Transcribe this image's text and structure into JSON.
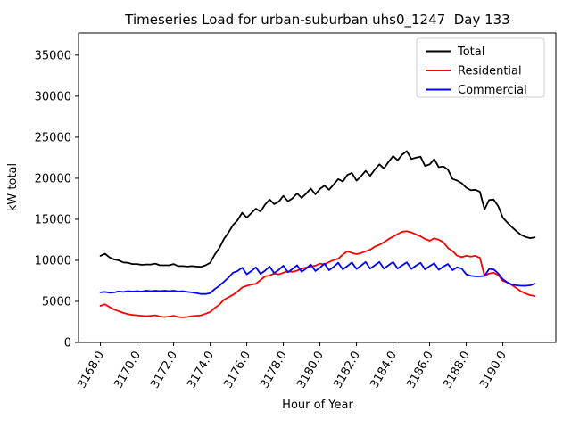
{
  "window": {
    "title": "Timeseries Load for urban-suburban uhs0_1247  Day 133"
  },
  "colors": {
    "total": "#000000",
    "residential": "#ff0000",
    "commercial": "#0000ff",
    "legend_border": "#cccccc",
    "background": "#ffffff"
  },
  "chart_data": {
    "type": "line",
    "title": "Timeseries Load for urban-suburban uhs0_1247  Day 133",
    "xlabel": "Hour of Year",
    "ylabel": "kW total",
    "xlim": [
      3166.8,
      3192.9
    ],
    "ylim": [
      0,
      37700
    ],
    "grid": false,
    "legend_position": "upper right",
    "x_ticks": [
      "3168.0",
      "3170.0",
      "3172.0",
      "3174.0",
      "3176.0",
      "3178.0",
      "3180.0",
      "3182.0",
      "3184.0",
      "3186.0",
      "3188.0",
      "3190.0"
    ],
    "y_ticks": [
      "0",
      "5000",
      "10000",
      "15000",
      "20000",
      "25000",
      "30000",
      "35000"
    ],
    "x": [
      3168.0,
      3168.25,
      3168.5,
      3168.75,
      3169.0,
      3169.25,
      3169.5,
      3169.75,
      3170.0,
      3170.25,
      3170.5,
      3170.75,
      3171.0,
      3171.25,
      3171.5,
      3171.75,
      3172.0,
      3172.25,
      3172.5,
      3172.75,
      3173.0,
      3173.25,
      3173.5,
      3173.75,
      3174.0,
      3174.25,
      3174.5,
      3174.75,
      3175.0,
      3175.25,
      3175.5,
      3175.75,
      3176.0,
      3176.25,
      3176.5,
      3176.75,
      3177.0,
      3177.25,
      3177.5,
      3177.75,
      3178.0,
      3178.25,
      3178.5,
      3178.75,
      3179.0,
      3179.25,
      3179.5,
      3179.75,
      3180.0,
      3180.25,
      3180.5,
      3180.75,
      3181.0,
      3181.25,
      3181.5,
      3181.75,
      3182.0,
      3182.25,
      3182.5,
      3182.75,
      3183.0,
      3183.25,
      3183.5,
      3183.75,
      3184.0,
      3184.25,
      3184.5,
      3184.75,
      3185.0,
      3185.25,
      3185.5,
      3185.75,
      3186.0,
      3186.25,
      3186.5,
      3186.75,
      3187.0,
      3187.25,
      3187.5,
      3187.75,
      3188.0,
      3188.25,
      3188.5,
      3188.75,
      3189.0,
      3189.25,
      3189.5,
      3189.75,
      3190.0,
      3190.25,
      3190.5,
      3190.75,
      3191.0,
      3191.25,
      3191.5,
      3191.75
    ],
    "series": [
      {
        "name": "Total",
        "color": "#000000",
        "values": [
          10550,
          10800,
          10350,
          10100,
          10000,
          9750,
          9700,
          9550,
          9550,
          9450,
          9500,
          9500,
          9600,
          9400,
          9400,
          9400,
          9550,
          9300,
          9300,
          9250,
          9300,
          9250,
          9200,
          9400,
          9700,
          10700,
          11500,
          12600,
          13400,
          14300,
          14900,
          15800,
          15200,
          15750,
          16300,
          15950,
          16800,
          17400,
          16850,
          17150,
          17850,
          17200,
          17550,
          18150,
          17600,
          18130,
          18750,
          18050,
          18700,
          19100,
          18600,
          19230,
          19900,
          19600,
          20400,
          20650,
          19710,
          20250,
          20900,
          20300,
          21070,
          21700,
          21200,
          21980,
          22700,
          22200,
          22880,
          23300,
          22350,
          22500,
          22630,
          21500,
          21690,
          22330,
          21350,
          21450,
          21050,
          19920,
          19720,
          19400,
          18850,
          18550,
          18600,
          18350,
          16200,
          17350,
          17400,
          16600,
          15200,
          14600,
          14050,
          13550,
          13100,
          12850,
          12700,
          12800
        ]
      },
      {
        "name": "Residential",
        "color": "#ff0000",
        "values": [
          4450,
          4650,
          4300,
          4000,
          3800,
          3600,
          3450,
          3350,
          3300,
          3250,
          3200,
          3250,
          3300,
          3150,
          3100,
          3150,
          3250,
          3100,
          3050,
          3100,
          3200,
          3250,
          3300,
          3500,
          3700,
          4200,
          4600,
          5200,
          5500,
          5800,
          6200,
          6700,
          6900,
          7050,
          7150,
          7600,
          8050,
          8150,
          8400,
          8300,
          8500,
          8650,
          8600,
          8750,
          9000,
          9130,
          9250,
          9350,
          9600,
          9500,
          9800,
          10030,
          10200,
          10700,
          11100,
          10900,
          10760,
          10900,
          11100,
          11300,
          11670,
          11900,
          12200,
          12580,
          12900,
          13200,
          13480,
          13550,
          13400,
          13150,
          12930,
          12600,
          12390,
          12680,
          12500,
          12200,
          11500,
          11120,
          10570,
          10400,
          10550,
          10450,
          10550,
          10300,
          8100,
          8400,
          8500,
          8200,
          7500,
          7300,
          7000,
          6600,
          6200,
          5950,
          5750,
          5650
        ]
      },
      {
        "name": "Commercial",
        "color": "#0000ff",
        "values": [
          6100,
          6150,
          6050,
          6100,
          6200,
          6150,
          6250,
          6200,
          6250,
          6200,
          6300,
          6250,
          6300,
          6250,
          6300,
          6250,
          6300,
          6200,
          6250,
          6150,
          6100,
          6000,
          5900,
          5900,
          6000,
          6500,
          6900,
          7400,
          7900,
          8500,
          8700,
          9100,
          8300,
          8700,
          9150,
          8350,
          8750,
          9250,
          8450,
          8850,
          9350,
          8550,
          8950,
          9400,
          8600,
          9000,
          9500,
          8700,
          9100,
          9600,
          8800,
          9200,
          9700,
          8900,
          9300,
          9750,
          8950,
          9350,
          9800,
          9000,
          9400,
          9800,
          9000,
          9400,
          9800,
          9000,
          9400,
          9750,
          8950,
          9350,
          9700,
          8900,
          9300,
          9650,
          8850,
          9250,
          9550,
          8800,
          9150,
          9000,
          8300,
          8100,
          8050,
          8050,
          8100,
          8950,
          8900,
          8400,
          7700,
          7300,
          7050,
          6950,
          6900,
          6900,
          6950,
          7150
        ]
      }
    ]
  }
}
